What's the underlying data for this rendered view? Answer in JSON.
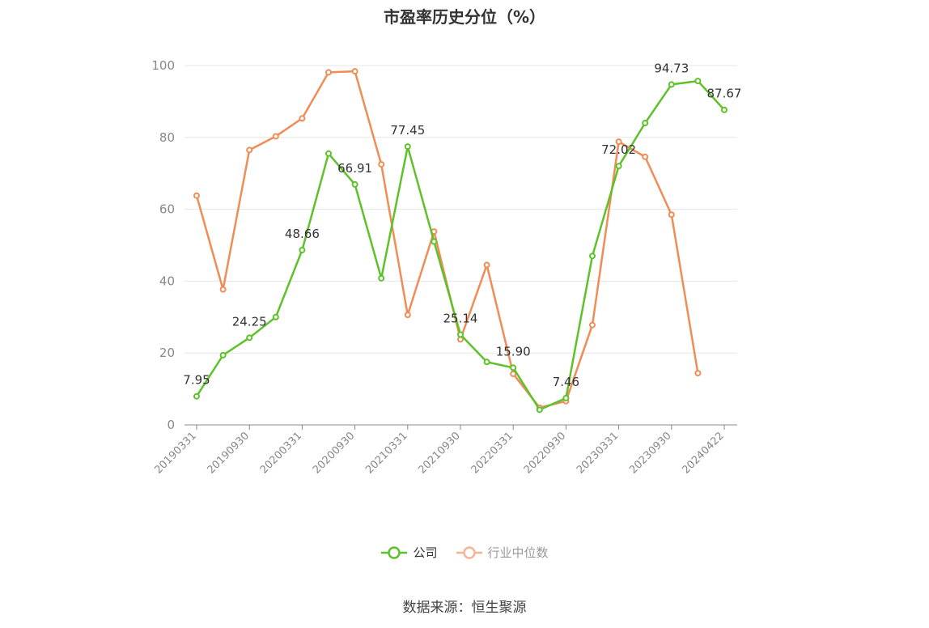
{
  "title": "市盈率历史分位（%）",
  "source": "数据来源：恒生聚源",
  "colors": {
    "company": "#5dc22a",
    "industry": "#f08c55",
    "grid": "#e6e6e6",
    "axis": "#888888"
  },
  "chart_data": {
    "type": "line",
    "title": "市盈率历史分位（%）",
    "xlabel": "",
    "ylabel": "",
    "ylim": [
      0,
      100
    ],
    "yticks": [
      0,
      20,
      40,
      60,
      80,
      100
    ],
    "grid": true,
    "legend_position": "bottom",
    "x": [
      "20190331",
      "20190630",
      "20190930",
      "20191231",
      "20200331",
      "20200630",
      "20200930",
      "20201231",
      "20210331",
      "20210630",
      "20210930",
      "20211231",
      "20220331",
      "20220630",
      "20220930",
      "20221231",
      "20230331",
      "20230630",
      "20230930",
      "20231231",
      "20240422"
    ],
    "xtick_labels": [
      "20190331",
      "20190930",
      "20200331",
      "20200930",
      "20210331",
      "20210930",
      "20220331",
      "20220930",
      "20230331",
      "20230930",
      "20240422"
    ],
    "xtick_indices": [
      0,
      2,
      4,
      6,
      8,
      10,
      12,
      14,
      16,
      18,
      20
    ],
    "series": [
      {
        "name": "公司",
        "values": [
          7.95,
          19.4,
          24.25,
          30.0,
          48.66,
          75.5,
          66.91,
          40.8,
          77.45,
          51.0,
          25.14,
          17.5,
          15.9,
          4.2,
          7.46,
          47.0,
          72.02,
          84.0,
          94.73,
          95.7,
          87.67
        ],
        "labeled_indices": [
          0,
          2,
          4,
          6,
          8,
          10,
          12,
          14,
          16,
          18,
          20
        ]
      },
      {
        "name": "行业中位数",
        "values": [
          63.8,
          37.7,
          76.5,
          80.3,
          85.3,
          98.1,
          98.4,
          72.5,
          30.6,
          53.8,
          23.8,
          44.5,
          14.2,
          4.8,
          6.6,
          27.8,
          78.8,
          74.6,
          58.5,
          14.4,
          null
        ]
      }
    ]
  }
}
